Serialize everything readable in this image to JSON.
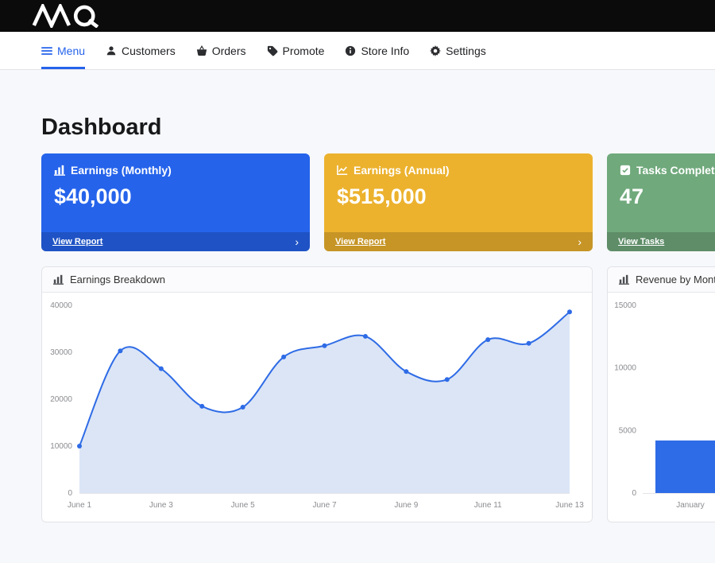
{
  "topbar": {
    "logo": "MQ"
  },
  "nav": {
    "items": [
      {
        "label": "Menu",
        "icon": "menu-icon",
        "active": true
      },
      {
        "label": "Customers",
        "icon": "user-icon",
        "active": false
      },
      {
        "label": "Orders",
        "icon": "basket-icon",
        "active": false
      },
      {
        "label": "Promote",
        "icon": "tag-icon",
        "active": false
      },
      {
        "label": "Store Info",
        "icon": "info-circle-icon",
        "active": false
      },
      {
        "label": "Settings",
        "icon": "gear-icon",
        "active": false
      }
    ]
  },
  "page": {
    "title": "Dashboard"
  },
  "icons": {
    "chevron_right": "›"
  },
  "stat_cards": [
    {
      "title": "Earnings (Monthly)",
      "value": "$40,000",
      "link": "View Report",
      "color": "#2563eb",
      "icon": "chart-bar-icon"
    },
    {
      "title": "Earnings (Annual)",
      "value": "$515,000",
      "link": "View Report",
      "color": "#ecb22e",
      "icon": "chart-line-icon"
    },
    {
      "title": "Tasks Completed",
      "value": "47",
      "link": "View Tasks",
      "color": "#70a97c",
      "icon": "check-square-icon"
    }
  ],
  "chart_data": [
    {
      "type": "line",
      "title": "Earnings Breakdown",
      "x": [
        "June 1",
        "June 2",
        "June 3",
        "June 4",
        "June 5",
        "June 6",
        "June 7",
        "June 8",
        "June 9",
        "June 10",
        "June 11",
        "June 12",
        "June 13"
      ],
      "values": [
        10000,
        30300,
        26500,
        18500,
        18300,
        29000,
        31400,
        33400,
        25900,
        24200,
        32700,
        31900,
        38600
      ],
      "x_tick_every": 2,
      "ylim": [
        0,
        40000
      ],
      "yticks": [
        0,
        10000,
        20000,
        30000,
        40000
      ],
      "line_color": "#2e6be6",
      "area_fill": "#dbe5f6",
      "grid": false,
      "legend": "none"
    },
    {
      "type": "bar",
      "title": "Revenue by Month",
      "categories": [
        "January"
      ],
      "values": [
        4200
      ],
      "ylim": [
        0,
        15000
      ],
      "yticks": [
        0,
        5000,
        10000,
        15000
      ],
      "bar_color": "#2e6be6",
      "grid": false,
      "legend": "none"
    }
  ]
}
